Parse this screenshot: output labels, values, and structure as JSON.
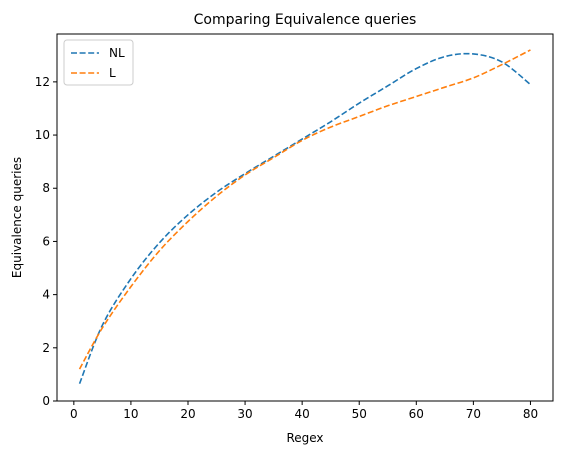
{
  "chart_data": {
    "type": "line",
    "title": "Comparing Equivalence queries",
    "xlabel": "Regex",
    "ylabel": "Equivalence queries",
    "xlim": [
      -2.95,
      83.95
    ],
    "ylim": [
      0,
      13.8
    ],
    "xticks": [
      "0",
      "10",
      "20",
      "30",
      "40",
      "50",
      "60",
      "70",
      "80"
    ],
    "yticks": [
      "0",
      "2",
      "4",
      "6",
      "8",
      "10",
      "12"
    ],
    "legend_position": "top-left",
    "grid": false,
    "series": [
      {
        "name": "NL",
        "color": "#1f77b4",
        "style": "dashed",
        "x": [
          1,
          5,
          10,
          15,
          20,
          25,
          30,
          35,
          40,
          45,
          50,
          55,
          60,
          65,
          70,
          75,
          80
        ],
        "y": [
          0.65,
          2.85,
          4.6,
          5.95,
          7.0,
          7.85,
          8.55,
          9.2,
          9.85,
          10.5,
          11.2,
          11.85,
          12.5,
          12.95,
          13.05,
          12.75,
          11.9
        ]
      },
      {
        "name": "L",
        "color": "#ff7f0e",
        "style": "dashed",
        "x": [
          1,
          5,
          10,
          15,
          20,
          25,
          30,
          35,
          40,
          45,
          50,
          55,
          60,
          65,
          70,
          75,
          80
        ],
        "y": [
          1.2,
          2.75,
          4.3,
          5.65,
          6.75,
          7.7,
          8.5,
          9.15,
          9.8,
          10.3,
          10.7,
          11.1,
          11.45,
          11.8,
          12.15,
          12.65,
          13.2
        ]
      }
    ]
  }
}
